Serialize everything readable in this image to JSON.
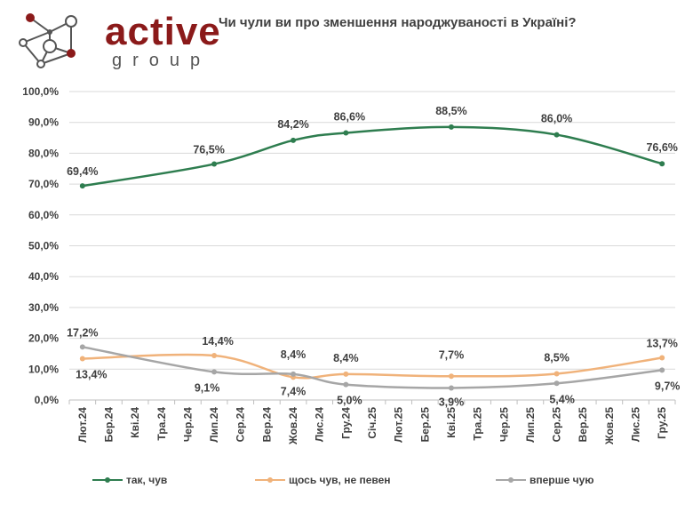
{
  "brand": {
    "name": "active",
    "sub": "group"
  },
  "chart_data": {
    "type": "line",
    "title": "Чи чули ви про зменшення народжуваності в Україні?",
    "categories": [
      "Лют.24",
      "Бер.24",
      "Кві.24",
      "Тра.24",
      "Чер.24",
      "Лип.24",
      "Сер.24",
      "Вер.24",
      "Жов.24",
      "Лис.24",
      "Гру.24",
      "Січ.25",
      "Лют.25",
      "Бер.25",
      "Кві.25",
      "Тра.25",
      "Чер.25",
      "Лип.25",
      "Сер.25",
      "Вер.25",
      "Жов.25",
      "Лис.25",
      "Гру.25"
    ],
    "ylim": [
      0,
      100
    ],
    "yticks": [
      0,
      10,
      20,
      30,
      40,
      50,
      60,
      70,
      80,
      90,
      100
    ],
    "ytick_labels": [
      "0,0%",
      "10,0%",
      "20,0%",
      "30,0%",
      "40,0%",
      "50,0%",
      "60,0%",
      "70,0%",
      "80,0%",
      "90,0%",
      "100,0%"
    ],
    "grid": true,
    "legend_position": "bottom",
    "series": [
      {
        "name": "так, чув",
        "color": "#2e7d4f",
        "points": [
          [
            0,
            69.4
          ],
          [
            5,
            76.5
          ],
          [
            8,
            84.2
          ],
          [
            10,
            86.6
          ],
          [
            14,
            88.5
          ],
          [
            18,
            86.0
          ],
          [
            22,
            76.6
          ]
        ],
        "labels": [
          "69,4%",
          "76,5%",
          "84,2%",
          "86,6%",
          "88,5%",
          "86,0%",
          "76,6%"
        ]
      },
      {
        "name": "щось чув, не певен",
        "color": "#f0b27a",
        "points": [
          [
            0,
            13.4
          ],
          [
            5,
            14.4
          ],
          [
            8,
            7.4
          ],
          [
            10,
            8.4
          ],
          [
            14,
            7.7
          ],
          [
            18,
            8.5
          ],
          [
            22,
            13.7
          ]
        ],
        "labels": [
          "13,4%",
          "14,4%",
          "7,4%",
          "8,4%",
          "7,7%",
          "8,5%",
          "13,7%"
        ]
      },
      {
        "name": "вперше чую",
        "color": "#a6a6a6",
        "points": [
          [
            0,
            17.2
          ],
          [
            5,
            9.1
          ],
          [
            8,
            8.4
          ],
          [
            10,
            5.0
          ],
          [
            14,
            3.9
          ],
          [
            18,
            5.4
          ],
          [
            22,
            9.7
          ]
        ],
        "labels": [
          "17,2%",
          "9,1%",
          "8,4%",
          "5,0%",
          "3,9%",
          "5,4%",
          "9,7%"
        ]
      }
    ]
  }
}
